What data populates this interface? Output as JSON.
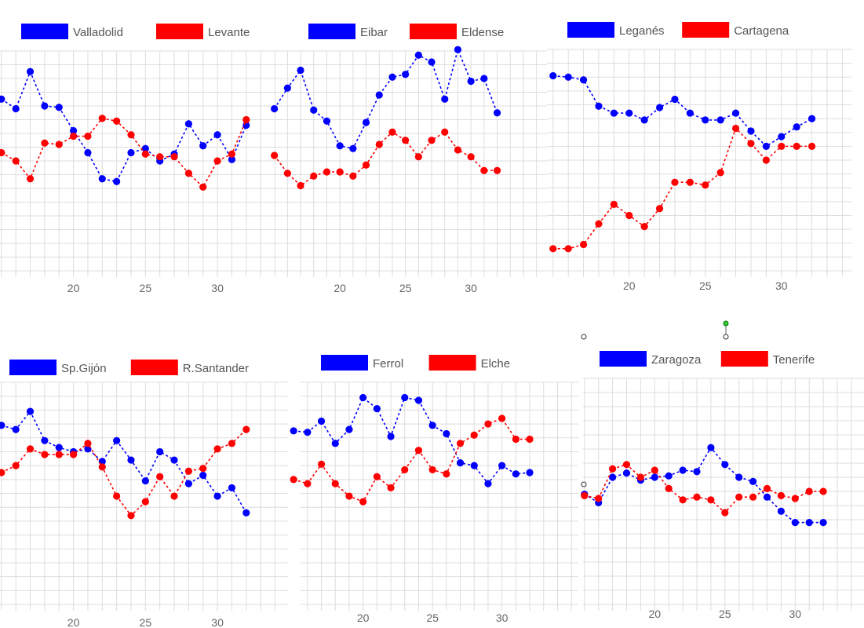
{
  "colors": {
    "blue": "#0000ff",
    "red": "#ff0000",
    "grid": "#dddddd",
    "text": "#555555"
  },
  "chart_data": [
    {
      "type": "line",
      "series": [
        {
          "name": "Valladolid",
          "color": "#0000ff",
          "x": [
            15,
            16,
            17,
            18,
            19,
            20,
            21,
            22,
            23,
            24,
            25,
            26,
            27,
            28,
            29,
            30,
            31,
            32
          ],
          "y": [
            4.5,
            3.8,
            6.5,
            4.0,
            3.9,
            2.2,
            0.6,
            -1.3,
            -1.5,
            0.6,
            0.9,
            0.0,
            0.5,
            2.7,
            1.1,
            1.9,
            0.1,
            2.6
          ]
        },
        {
          "name": "Levante",
          "color": "#ff0000",
          "x": [
            15,
            16,
            17,
            18,
            19,
            20,
            21,
            22,
            23,
            24,
            25,
            26,
            27,
            28,
            29,
            30,
            31,
            32
          ],
          "y": [
            0.6,
            0.0,
            -1.3,
            1.3,
            1.2,
            1.8,
            1.8,
            3.1,
            2.9,
            1.9,
            0.5,
            0.3,
            0.3,
            -0.9,
            -1.9,
            0.0,
            0.5,
            3.0
          ]
        }
      ],
      "xlim": [
        14.9,
        34.9
      ],
      "ylim": [
        -8,
        8
      ],
      "xticks": [
        20,
        25,
        30
      ]
    },
    {
      "type": "line",
      "series": [
        {
          "name": "Eibar",
          "color": "#0000ff",
          "x": [
            15,
            16,
            17,
            18,
            19,
            20,
            21,
            22,
            23,
            24,
            25,
            26,
            27,
            28,
            29,
            30,
            31,
            32
          ],
          "y": [
            3.8,
            5.3,
            6.6,
            3.7,
            2.9,
            1.1,
            0.9,
            2.8,
            4.8,
            6.1,
            6.3,
            7.7,
            7.2,
            4.5,
            8.1,
            5.8,
            6.0,
            3.5
          ]
        },
        {
          "name": "Eldense",
          "color": "#ff0000",
          "x": [
            15,
            16,
            17,
            18,
            19,
            20,
            21,
            22,
            23,
            24,
            25,
            26,
            27,
            28,
            29,
            30,
            31,
            32
          ],
          "y": [
            0.4,
            -0.9,
            -1.8,
            -1.1,
            -0.8,
            -0.8,
            -1.1,
            -0.3,
            1.2,
            2.1,
            1.5,
            0.3,
            1.5,
            2.1,
            0.8,
            0.3,
            -0.7,
            -0.7
          ]
        }
      ],
      "xlim": [
        15.8,
        35.8
      ],
      "ylim": [
        -8,
        8
      ],
      "xticks": [
        20,
        25,
        30
      ]
    },
    {
      "type": "line",
      "series": [
        {
          "name": "Leganés",
          "color": "#0000ff",
          "x": [
            15,
            16,
            17,
            18,
            19,
            20,
            21,
            22,
            23,
            24,
            25,
            26,
            27,
            28,
            29,
            30,
            31,
            32
          ],
          "y": [
            6.1,
            6.0,
            5.8,
            3.9,
            3.4,
            3.4,
            2.9,
            3.8,
            4.4,
            3.4,
            2.9,
            2.9,
            3.4,
            2.1,
            1.0,
            1.7,
            2.4,
            3.0
          ]
        },
        {
          "name": "Cartagena",
          "color": "#ff0000",
          "x": [
            15,
            16,
            17,
            18,
            19,
            20,
            21,
            22,
            23,
            24,
            25,
            26,
            27,
            28,
            29,
            30,
            31,
            32
          ],
          "y": [
            -6.4,
            -6.4,
            -6.1,
            -4.6,
            -3.2,
            -4.0,
            -4.8,
            -3.5,
            -1.6,
            -1.6,
            -1.8,
            -0.9,
            2.3,
            1.2,
            0.0,
            1.0,
            1.0,
            1.0
          ]
        }
      ],
      "xlim": [
        14.6,
        34.6
      ],
      "ylim": [
        -8,
        8
      ],
      "xticks": [
        20,
        25,
        30
      ]
    },
    {
      "type": "line",
      "series": [
        {
          "name": "Sp.Gijón",
          "color": "#0000ff",
          "x": [
            15,
            16,
            17,
            18,
            19,
            20,
            21,
            22,
            23,
            24,
            25,
            26,
            27,
            28,
            29,
            30,
            31,
            32
          ],
          "y": [
            4.9,
            4.6,
            5.9,
            3.8,
            3.3,
            3.0,
            3.2,
            2.3,
            3.8,
            2.4,
            0.9,
            3.0,
            2.4,
            0.7,
            1.3,
            -0.2,
            0.4,
            -1.4
          ]
        },
        {
          "name": "R.Santander",
          "color": "#ff0000",
          "x": [
            15,
            16,
            17,
            18,
            19,
            20,
            21,
            22,
            23,
            24,
            25,
            26,
            27,
            28,
            29,
            30,
            31,
            32
          ],
          "y": [
            1.5,
            2.0,
            3.2,
            2.8,
            2.8,
            2.8,
            3.6,
            1.9,
            -0.2,
            -1.6,
            -0.6,
            1.2,
            -0.2,
            1.6,
            1.8,
            3.2,
            3.6,
            4.6
          ]
        }
      ],
      "xlim": [
        14.9,
        34.9
      ],
      "ylim": [
        -8,
        8
      ],
      "xticks": [
        20,
        25,
        30
      ]
    },
    {
      "type": "line",
      "series": [
        {
          "name": "Ferrol",
          "color": "#0000ff",
          "x": [
            15,
            16,
            17,
            18,
            19,
            20,
            21,
            22,
            23,
            24,
            25,
            26,
            27,
            28,
            29,
            30,
            31,
            32
          ],
          "y": [
            4.5,
            4.4,
            5.2,
            3.6,
            4.6,
            6.9,
            6.1,
            4.1,
            6.9,
            6.7,
            4.9,
            4.3,
            2.2,
            2.0,
            0.7,
            2.0,
            1.4,
            1.5
          ]
        },
        {
          "name": "Elche",
          "color": "#ff0000",
          "x": [
            15,
            16,
            17,
            18,
            19,
            20,
            21,
            22,
            23,
            24,
            25,
            26,
            27,
            28,
            29,
            30,
            31,
            32
          ],
          "y": [
            1.0,
            0.7,
            2.1,
            0.7,
            -0.2,
            -0.6,
            1.2,
            0.4,
            1.7,
            3.1,
            1.7,
            1.4,
            3.6,
            4.2,
            5.0,
            5.4,
            3.9,
            3.9
          ]
        }
      ],
      "xlim": [
        15.5,
        35.5
      ],
      "ylim": [
        -8,
        8
      ],
      "xticks": [
        20,
        25,
        30
      ]
    },
    {
      "type": "line",
      "series": [
        {
          "name": "Zaragoza",
          "color": "#0000ff",
          "x": [
            15,
            16,
            17,
            18,
            19,
            20,
            21,
            22,
            23,
            24,
            25,
            26,
            27,
            28,
            29,
            30,
            31,
            32
          ],
          "y": [
            -0.2,
            -0.8,
            1.0,
            1.3,
            0.8,
            1.0,
            1.1,
            1.5,
            1.4,
            3.1,
            1.9,
            1.0,
            0.7,
            -0.4,
            -1.4,
            -2.2,
            -2.2,
            -2.2
          ]
        },
        {
          "name": "Tenerife",
          "color": "#ff0000",
          "x": [
            15,
            16,
            17,
            18,
            19,
            20,
            21,
            22,
            23,
            24,
            25,
            26,
            27,
            28,
            29,
            30,
            31,
            32
          ],
          "y": [
            -0.3,
            -0.5,
            1.6,
            1.9,
            1.0,
            1.5,
            0.2,
            -0.6,
            -0.4,
            -0.6,
            -1.5,
            -0.4,
            -0.4,
            0.2,
            -0.3,
            -0.5,
            0.0,
            0.0
          ]
        }
      ],
      "xlim": [
        14.9,
        34.9
      ],
      "ylim": [
        -8,
        8
      ],
      "xticks": [
        20,
        25,
        30
      ]
    }
  ]
}
